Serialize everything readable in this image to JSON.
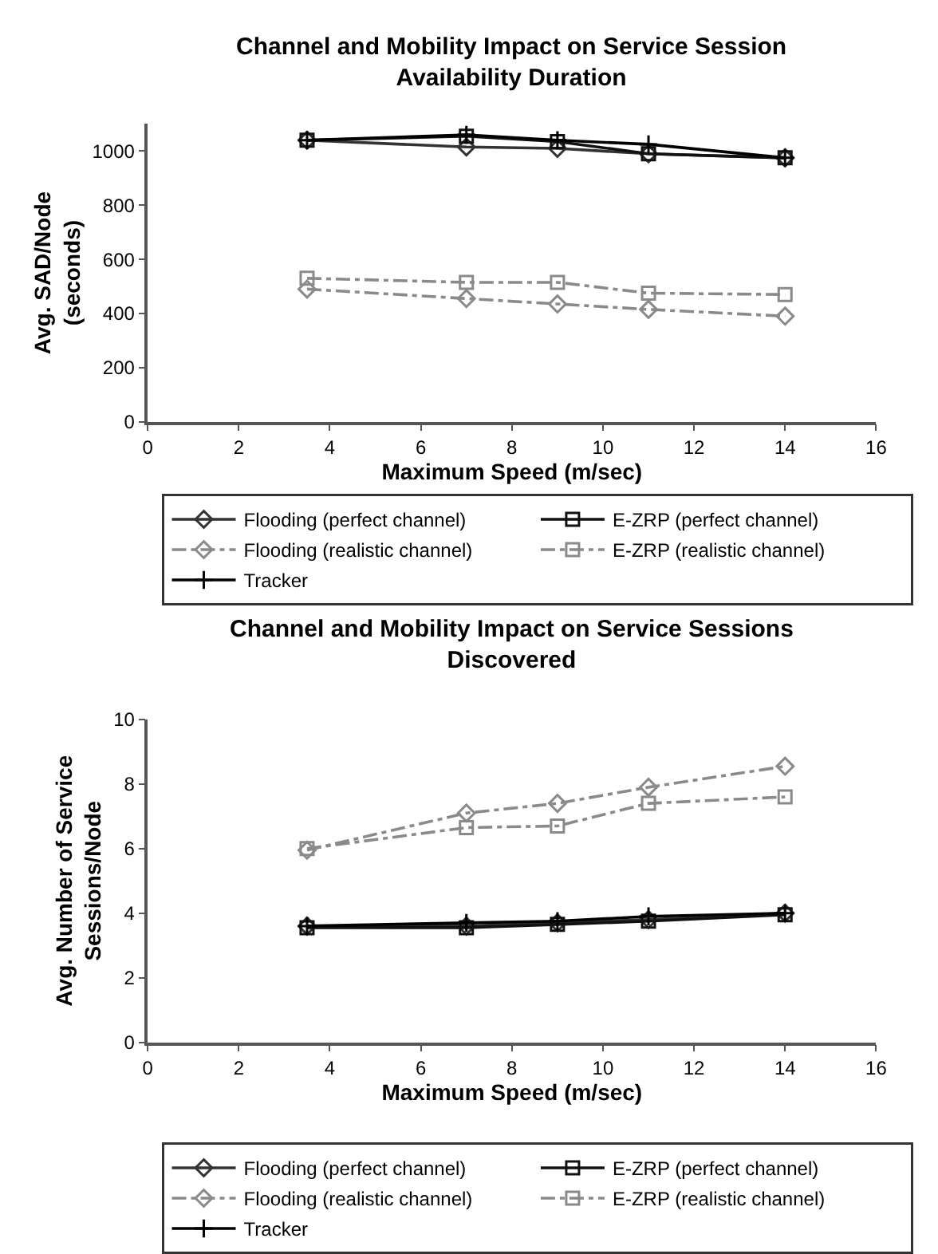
{
  "chart_data": [
    {
      "type": "line",
      "title": "Channel and Mobility Impact on Service Session\nAvailability Duration",
      "xlabel": "Maximum Speed (m/sec)",
      "ylabel": "Avg. SAD/Node\n(seconds)",
      "x": [
        3.5,
        7,
        9,
        11,
        14
      ],
      "xlim": [
        0,
        16
      ],
      "xticks": [
        0,
        2,
        4,
        6,
        8,
        10,
        12,
        14,
        16
      ],
      "ylim": [
        0,
        1100
      ],
      "yticks": [
        0,
        200,
        400,
        600,
        800,
        1000
      ],
      "legend": "bottom",
      "series": [
        {
          "name": "Flooding (perfect channel)",
          "color": "#333333",
          "marker": "diamond",
          "line_style": "solid",
          "values": [
            1040,
            1015,
            1010,
            990,
            975
          ]
        },
        {
          "name": "E-ZRP (perfect channel)",
          "color": "#111111",
          "marker": "square",
          "line_style": "solid",
          "values": [
            1040,
            1055,
            1035,
            990,
            975
          ]
        },
        {
          "name": "Flooding (realistic channel)",
          "color": "#8a8a8a",
          "marker": "diamond",
          "line_style": "dashed",
          "values": [
            490,
            455,
            435,
            415,
            390
          ]
        },
        {
          "name": "E-ZRP (realistic channel)",
          "color": "#8a8a8a",
          "marker": "square",
          "line_style": "dashed",
          "values": [
            530,
            515,
            515,
            475,
            470
          ]
        },
        {
          "name": "Tracker",
          "color": "#000000",
          "marker": "cross",
          "line_style": "solid",
          "values": [
            1040,
            1060,
            1040,
            1025,
            975
          ]
        }
      ]
    },
    {
      "type": "line",
      "title": "Channel and Mobility Impact on Service Sessions\nDiscovered",
      "xlabel": "Maximum Speed (m/sec)",
      "ylabel": "Avg. Number of Service\nSessions/Node",
      "x": [
        3.5,
        7,
        9,
        11,
        14
      ],
      "xlim": [
        0,
        16
      ],
      "xticks": [
        0,
        2,
        4,
        6,
        8,
        10,
        12,
        14,
        16
      ],
      "ylim": [
        0,
        10
      ],
      "yticks": [
        0,
        2,
        4,
        6,
        8,
        10
      ],
      "legend": "bottom",
      "series": [
        {
          "name": "Flooding (perfect channel)",
          "color": "#333333",
          "marker": "diamond",
          "line_style": "solid",
          "values": [
            3.6,
            3.6,
            3.7,
            3.8,
            4.0
          ]
        },
        {
          "name": "E-ZRP (perfect channel)",
          "color": "#111111",
          "marker": "square",
          "line_style": "solid",
          "values": [
            3.55,
            3.55,
            3.65,
            3.75,
            3.95
          ]
        },
        {
          "name": "Flooding (realistic channel)",
          "color": "#8a8a8a",
          "marker": "diamond",
          "line_style": "dashed",
          "values": [
            5.95,
            7.1,
            7.4,
            7.9,
            8.55
          ]
        },
        {
          "name": "E-ZRP (realistic channel)",
          "color": "#8a8a8a",
          "marker": "square",
          "line_style": "dashed",
          "values": [
            6.0,
            6.65,
            6.7,
            7.4,
            7.6
          ]
        },
        {
          "name": "Tracker",
          "color": "#000000",
          "marker": "cross",
          "line_style": "solid",
          "values": [
            3.6,
            3.7,
            3.75,
            3.9,
            4.0
          ]
        }
      ]
    }
  ]
}
